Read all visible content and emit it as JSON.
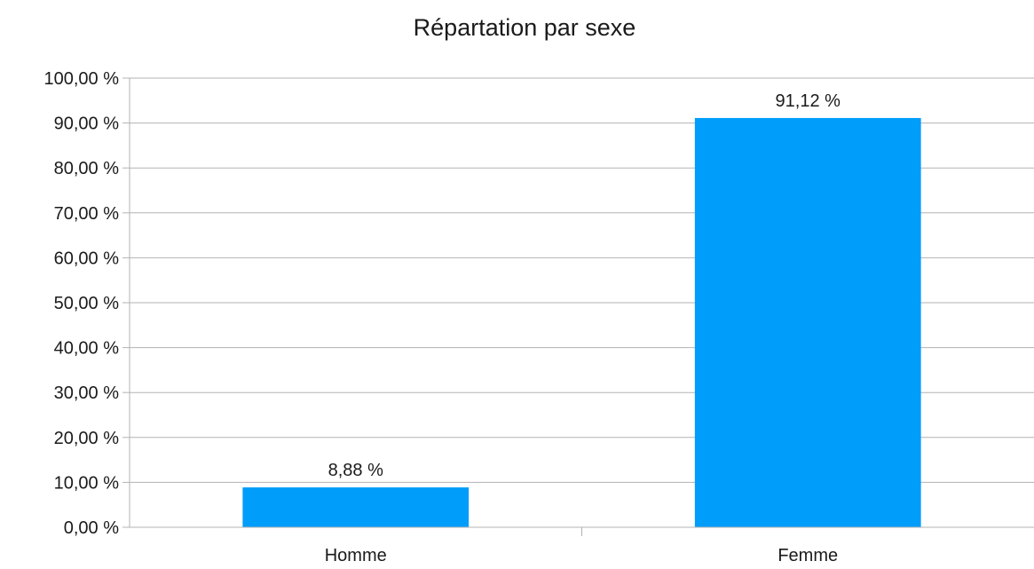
{
  "chart_data": {
    "type": "bar",
    "title": "Répartation par sexe",
    "xlabel": "",
    "ylabel": "",
    "categories": [
      "Homme",
      "Femme"
    ],
    "values": [
      8.88,
      91.12
    ],
    "data_labels": [
      "8,88 %",
      "91,12 %"
    ],
    "ylim": [
      0,
      100
    ],
    "yticks": [
      0,
      10,
      20,
      30,
      40,
      50,
      60,
      70,
      80,
      90,
      100
    ],
    "ytick_labels": [
      "0,00 %",
      "10,00 %",
      "20,00 %",
      "30,00 %",
      "40,00 %",
      "50,00 %",
      "60,00 %",
      "70,00 %",
      "80,00 %",
      "90,00 %",
      "100,00 %"
    ],
    "grid": true,
    "legend": "none",
    "bar_color": "#009dfa"
  }
}
